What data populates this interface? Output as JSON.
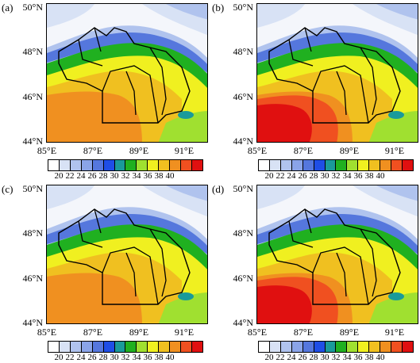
{
  "panels": [
    {
      "label": "(a)"
    },
    {
      "label": "(b)"
    },
    {
      "label": "(c)"
    },
    {
      "label": "(d)"
    }
  ],
  "lat_labels": [
    "50°N",
    "48°N",
    "46°N",
    "44°N"
  ],
  "lon_labels": [
    "85°E",
    "87°E",
    "89°E",
    "91°E"
  ],
  "legend": {
    "ticks": [
      "20",
      "22",
      "24",
      "26",
      "28",
      "30",
      "32",
      "34",
      "36",
      "38",
      "40"
    ],
    "colors": [
      "#ffffff",
      "#d8e2f5",
      "#b0c3ee",
      "#8aa4e8",
      "#5577dd",
      "#1f4ee6",
      "#1a9a9a",
      "#20b020",
      "#a0e030",
      "#f0f020",
      "#f0c020",
      "#f09020",
      "#f05020",
      "#e01010"
    ]
  },
  "chart_data": {
    "type": "heatmap",
    "panels": [
      "(a)",
      "(b)",
      "(c)",
      "(d)"
    ],
    "x_axis": {
      "ticks": [
        "85°E",
        "87°E",
        "89°E",
        "91°E"
      ],
      "range": [
        85,
        92
      ]
    },
    "y_axis": {
      "ticks": [
        "44°N",
        "46°N",
        "48°N",
        "50°N"
      ],
      "range": [
        44,
        50
      ]
    },
    "colorbar_levels": [
      20,
      22,
      24,
      26,
      28,
      30,
      32,
      34,
      36,
      38,
      40
    ]
  }
}
